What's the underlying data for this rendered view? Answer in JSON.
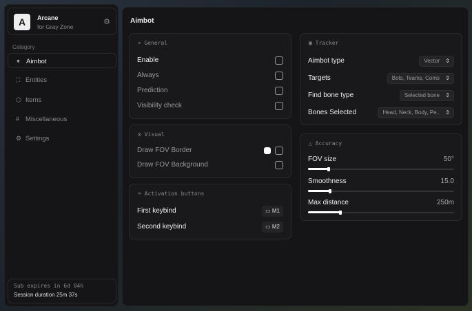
{
  "brand": {
    "name": "Arcane",
    "subtitle": "for Gray Zone",
    "logo_letter": "A"
  },
  "sidebar": {
    "category_label": "Category",
    "items": [
      {
        "label": "Aimbot",
        "icon": "crosshair-icon",
        "active": true
      },
      {
        "label": "Entities",
        "icon": "entities-icon"
      },
      {
        "label": "Items",
        "icon": "box-icon"
      },
      {
        "label": "Miscellaneous",
        "icon": "hash-icon"
      },
      {
        "label": "Settings",
        "icon": "gear-icon"
      }
    ],
    "sub_expires": "Sub expires in 6d 04h",
    "session": "Session duration 25m 37s"
  },
  "header": {
    "title": "Aimbot"
  },
  "general": {
    "title": "General",
    "items": [
      {
        "label": "Enable",
        "checked": false
      },
      {
        "label": "Always",
        "checked": false
      },
      {
        "label": "Prediction",
        "checked": false
      },
      {
        "label": "Visibility check",
        "checked": false
      }
    ]
  },
  "visual": {
    "title": "Visual",
    "items": [
      {
        "label": "Draw FOV Border",
        "checked": false,
        "color": "#ffffff"
      },
      {
        "label": "Draw FOV Background",
        "checked": false
      }
    ]
  },
  "activation": {
    "title": "Activation buttons",
    "items": [
      {
        "label": "First keybind",
        "key": "M1"
      },
      {
        "label": "Second keybind",
        "key": "M2"
      }
    ]
  },
  "tracker": {
    "title": "Tracker",
    "items": [
      {
        "label": "Aimbot type",
        "value": "Vector"
      },
      {
        "label": "Targets",
        "value": "Bots, Teams, Coms"
      },
      {
        "label": "Find bone type",
        "value": "Selected bone"
      },
      {
        "label": "Bones Selected",
        "value": "Head, Neck, Body, Pe.."
      }
    ]
  },
  "accuracy": {
    "title": "Accuracy",
    "sliders": [
      {
        "label": "FOV size",
        "value": "50°",
        "fraction": 0.14
      },
      {
        "label": "Smoothness",
        "value": "15.0",
        "fraction": 0.15
      },
      {
        "label": "Max distance",
        "value": "250m",
        "fraction": 0.22
      }
    ]
  }
}
